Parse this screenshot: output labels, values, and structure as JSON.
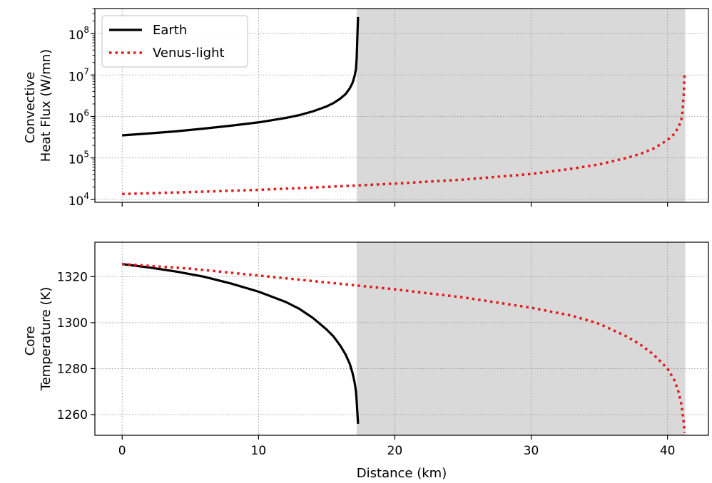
{
  "chart_data": [
    {
      "type": "line",
      "panel": "top",
      "ylabel_lines": [
        "Convective",
        "Heat Flux (W/mn)"
      ],
      "yscale": "log",
      "xlim": [
        -2,
        43
      ],
      "ylim": [
        8500,
        400000000
      ],
      "yticks": [
        {
          "value": 10000,
          "base": "10",
          "exp": "4"
        },
        {
          "value": 100000,
          "base": "10",
          "exp": "5"
        },
        {
          "value": 1000000,
          "base": "10",
          "exp": "6"
        },
        {
          "value": 10000000,
          "base": "10",
          "exp": "7"
        },
        {
          "value": 100000000,
          "base": "10",
          "exp": "8"
        }
      ],
      "shaded_region": [
        17.2,
        41.3
      ],
      "grid": true,
      "legend": {
        "placement": "top-left",
        "entries": [
          "Earth",
          "Venus-light"
        ]
      },
      "series": [
        {
          "name": "Earth",
          "color": "#000000",
          "style": "solid",
          "x": [
            0,
            2,
            4,
            6,
            8,
            10,
            12,
            13,
            14,
            15,
            15.5,
            16,
            16.4,
            16.7,
            16.9,
            17.05,
            17.15,
            17.2,
            17.25,
            17.3
          ],
          "y": [
            350000,
            390000,
            440000,
            510000,
            600000,
            720000,
            920000,
            1080000,
            1330000,
            1750000,
            2100000,
            2700000,
            3500000,
            4800000,
            6500000,
            9500000,
            14000000,
            25000000,
            80000000,
            250000000
          ]
        },
        {
          "name": "Venus-light",
          "color": "#e31a1c",
          "style": "dotted",
          "x": [
            0,
            5,
            10,
            15,
            20,
            25,
            30,
            33,
            35,
            37,
            38,
            39,
            40,
            40.5,
            40.8,
            41,
            41.1,
            41.2,
            41.25
          ],
          "y": [
            13500,
            15000,
            17000,
            20000,
            24000,
            30000,
            41000,
            55000,
            70000,
            100000,
            125000,
            170000,
            270000,
            380000,
            550000,
            800000,
            1300000,
            4000000,
            11000000
          ]
        }
      ]
    },
    {
      "type": "line",
      "panel": "bottom",
      "xlabel": "Distance (km)",
      "ylabel_lines": [
        "Core",
        "Temperature (K)"
      ],
      "xlim": [
        -2,
        43
      ],
      "ylim": [
        1251,
        1335
      ],
      "xticks": [
        0,
        10,
        20,
        30,
        40
      ],
      "yticks": [
        1260,
        1280,
        1300,
        1320
      ],
      "shaded_region": [
        17.2,
        41.3
      ],
      "grid": true,
      "series": [
        {
          "name": "Earth",
          "color": "#000000",
          "style": "solid",
          "x": [
            0,
            2,
            4,
            6,
            8,
            10,
            12,
            13,
            14,
            15,
            15.5,
            16,
            16.4,
            16.7,
            16.9,
            17.05,
            17.15,
            17.2,
            17.25,
            17.3
          ],
          "y": [
            1325.5,
            1324,
            1322.2,
            1320,
            1317,
            1313.5,
            1309,
            1306,
            1302,
            1297,
            1294,
            1290,
            1286,
            1282,
            1278,
            1274,
            1270,
            1266,
            1261,
            1256
          ]
        },
        {
          "name": "Venus-light",
          "color": "#e31a1c",
          "style": "dotted",
          "x": [
            0,
            5,
            10,
            15,
            20,
            25,
            30,
            33,
            35,
            37,
            38,
            39,
            40,
            40.5,
            40.8,
            41,
            41.1,
            41.2,
            41.25
          ],
          "y": [
            1325.5,
            1323.5,
            1320.5,
            1317.5,
            1314.5,
            1311,
            1306.5,
            1303,
            1299.5,
            1294,
            1290.5,
            1286,
            1280,
            1275,
            1270,
            1265,
            1261,
            1256,
            1252
          ]
        }
      ]
    }
  ]
}
